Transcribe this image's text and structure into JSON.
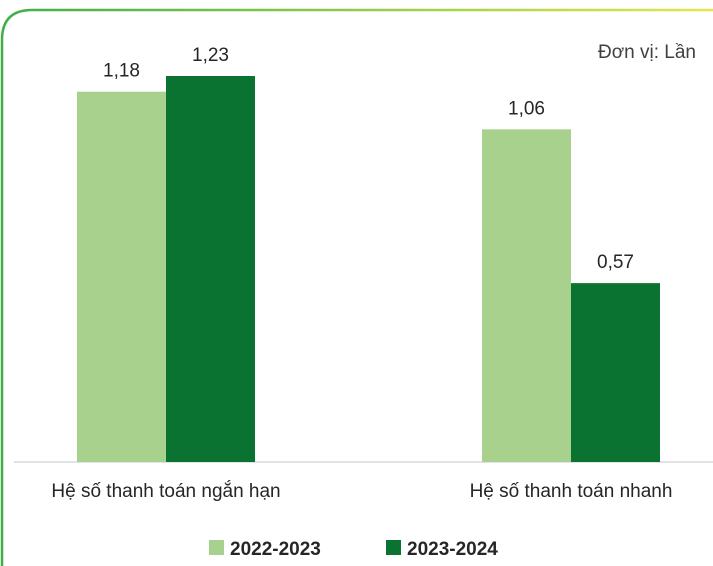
{
  "chart_data": {
    "type": "bar",
    "unit_note": "Đơn vị: Lần",
    "categories": [
      "Hệ số thanh toán ngắn hạn",
      "Hệ số thanh toán nhanh"
    ],
    "series": [
      {
        "name": "2022-2023",
        "values": [
          1.18,
          1.06
        ],
        "labels": [
          "1,18",
          "1,06"
        ]
      },
      {
        "name": "2023-2024",
        "values": [
          1.23,
          0.57
        ],
        "labels": [
          "1,23",
          "0,57"
        ]
      }
    ],
    "ylim": [
      0,
      1.27
    ],
    "legend_position": "bottom",
    "grid": false
  },
  "colors": {
    "series_light": "#a9d18e",
    "series_dark": "#0a7332",
    "frame_green": "#4caf50",
    "frame_yellow": "#d4e34a",
    "baseline": "#d9d9d9",
    "text": "#262626"
  }
}
